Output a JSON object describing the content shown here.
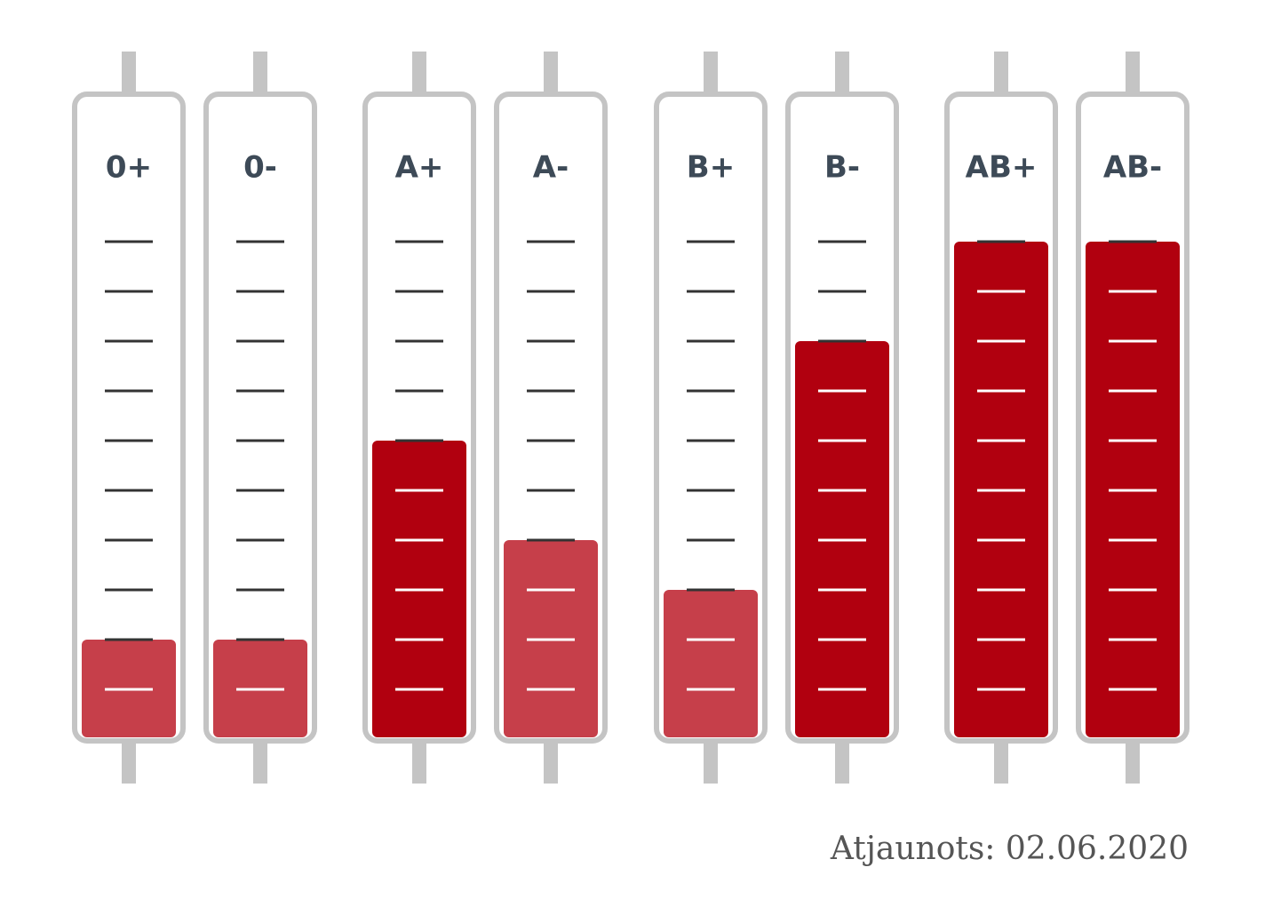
{
  "chart_data": {
    "type": "tube",
    "categories": [
      "0+",
      "0-",
      "A+",
      "A-",
      "B+",
      "B-",
      "AB+",
      "AB-"
    ],
    "values": [
      2,
      2,
      6,
      4,
      3,
      8,
      10,
      10
    ],
    "colors": [
      "#c63f4a",
      "#c63f4a",
      "#b1000f",
      "#c63f4a",
      "#c63f4a",
      "#b1000f",
      "#b1000f",
      "#b1000f"
    ],
    "ylim": [
      0,
      10
    ],
    "yticks": [
      1,
      2,
      3,
      4,
      5,
      6,
      7,
      8,
      9,
      10
    ],
    "note": "Atjaunots: 02.06.2020"
  }
}
